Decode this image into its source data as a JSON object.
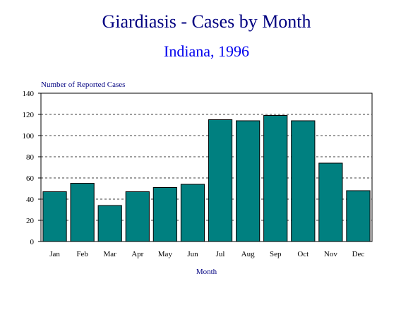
{
  "chart_data": {
    "type": "bar",
    "title": "Giardiasis - Cases by Month",
    "subtitle": "Indiana, 1996",
    "xlabel": "Month",
    "ylabel": "Number of Reported Cases",
    "categories": [
      "Jan",
      "Feb",
      "Mar",
      "Apr",
      "May",
      "Jun",
      "Jul",
      "Aug",
      "Sep",
      "Oct",
      "Nov",
      "Dec"
    ],
    "values": [
      47,
      55,
      34,
      47,
      51,
      54,
      115,
      114,
      119,
      114,
      74,
      48
    ],
    "ylim": [
      0,
      140
    ],
    "yticks": [
      0,
      20,
      40,
      60,
      80,
      100,
      120,
      140
    ],
    "grid": "horizontal dashed",
    "legend": "none",
    "bar_color": "#008080",
    "title_color": "#000080",
    "subtitle_color": "#0000ee"
  }
}
